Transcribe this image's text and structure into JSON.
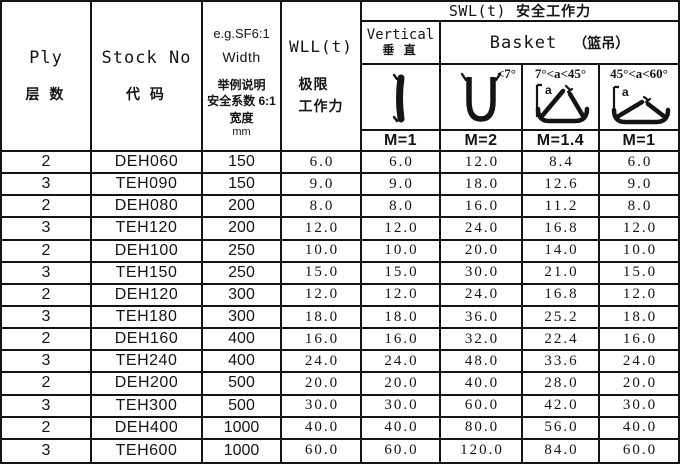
{
  "colors": {
    "ink": "#141414",
    "paper": "#ffffff"
  },
  "header": {
    "ply_en": "Ply",
    "ply_zh": "层 数",
    "stock_en": "Stock No",
    "stock_zh": "代 码",
    "width_l1": "e.g.SF6:1",
    "width_l2": "Width",
    "width_l3": "举例说明",
    "width_l4": "安全系数 6:1",
    "width_l5": "宽度",
    "width_l6": "mm",
    "wll_en": "WLL(t)",
    "wll_zh1": "极限",
    "wll_zh2": "工作力",
    "swl_en": "SWL(t)",
    "swl_zh": "安全工作力",
    "vertical_en": "Vertical",
    "vertical_zh": "垂 直",
    "basket_en": "Basket",
    "basket_zh": "（篮吊）",
    "angle_u": "<7°",
    "angle_mid": "7°<a<45°",
    "angle_wide": "45°<a<60°",
    "angle_var": "a",
    "icons": {
      "vertical": "vertical-sling-icon",
      "basket_u": "basket-hitch-u-icon",
      "basket_mid": "basket-angle-7-45-icon",
      "basket_wide": "basket-angle-45-60-icon"
    },
    "m_labels": [
      "M=1",
      "M=2",
      "M=1.4",
      "M=1"
    ]
  },
  "columns": [
    "Ply",
    "Stock No",
    "Width mm",
    "WLL(t)",
    "SWL M=1 Vertical",
    "SWL M=2 Basket <7°",
    "SWL M=1.4 Basket 7°<a<45°",
    "SWL M=1 Basket 45°<a<60°"
  ],
  "rows": [
    [
      "2",
      "DEH060",
      "150",
      "6.0",
      "6.0",
      "12.0",
      "8.4",
      "6.0"
    ],
    [
      "3",
      "TEH090",
      "150",
      "9.0",
      "9.0",
      "18.0",
      "12.6",
      "9.0"
    ],
    [
      "2",
      "DEH080",
      "200",
      "8.0",
      "8.0",
      "16.0",
      "11.2",
      "8.0"
    ],
    [
      "3",
      "TEH120",
      "200",
      "12.0",
      "12.0",
      "24.0",
      "16.8",
      "12.0"
    ],
    [
      "2",
      "DEH100",
      "250",
      "10.0",
      "10.0",
      "20.0",
      "14.0",
      "10.0"
    ],
    [
      "3",
      "TEH150",
      "250",
      "15.0",
      "15.0",
      "30.0",
      "21.0",
      "15.0"
    ],
    [
      "2",
      "DEH120",
      "300",
      "12.0",
      "12.0",
      "24.0",
      "16.8",
      "12.0"
    ],
    [
      "3",
      "TEH180",
      "300",
      "18.0",
      "18.0",
      "36.0",
      "25.2",
      "18.0"
    ],
    [
      "2",
      "DEH160",
      "400",
      "16.0",
      "16.0",
      "32.0",
      "22.4",
      "16.0"
    ],
    [
      "3",
      "TEH240",
      "400",
      "24.0",
      "24.0",
      "48.0",
      "33.6",
      "24.0"
    ],
    [
      "2",
      "DEH200",
      "500",
      "20.0",
      "20.0",
      "40.0",
      "28.0",
      "20.0"
    ],
    [
      "3",
      "TEH300",
      "500",
      "30.0",
      "30.0",
      "60.0",
      "42.0",
      "30.0"
    ],
    [
      "2",
      "DEH400",
      "1000",
      "40.0",
      "40.0",
      "80.0",
      "56.0",
      "40.0"
    ],
    [
      "3",
      "TEH600",
      "1000",
      "60.0",
      "60.0",
      "120.0",
      "84.0",
      "60.0"
    ]
  ]
}
